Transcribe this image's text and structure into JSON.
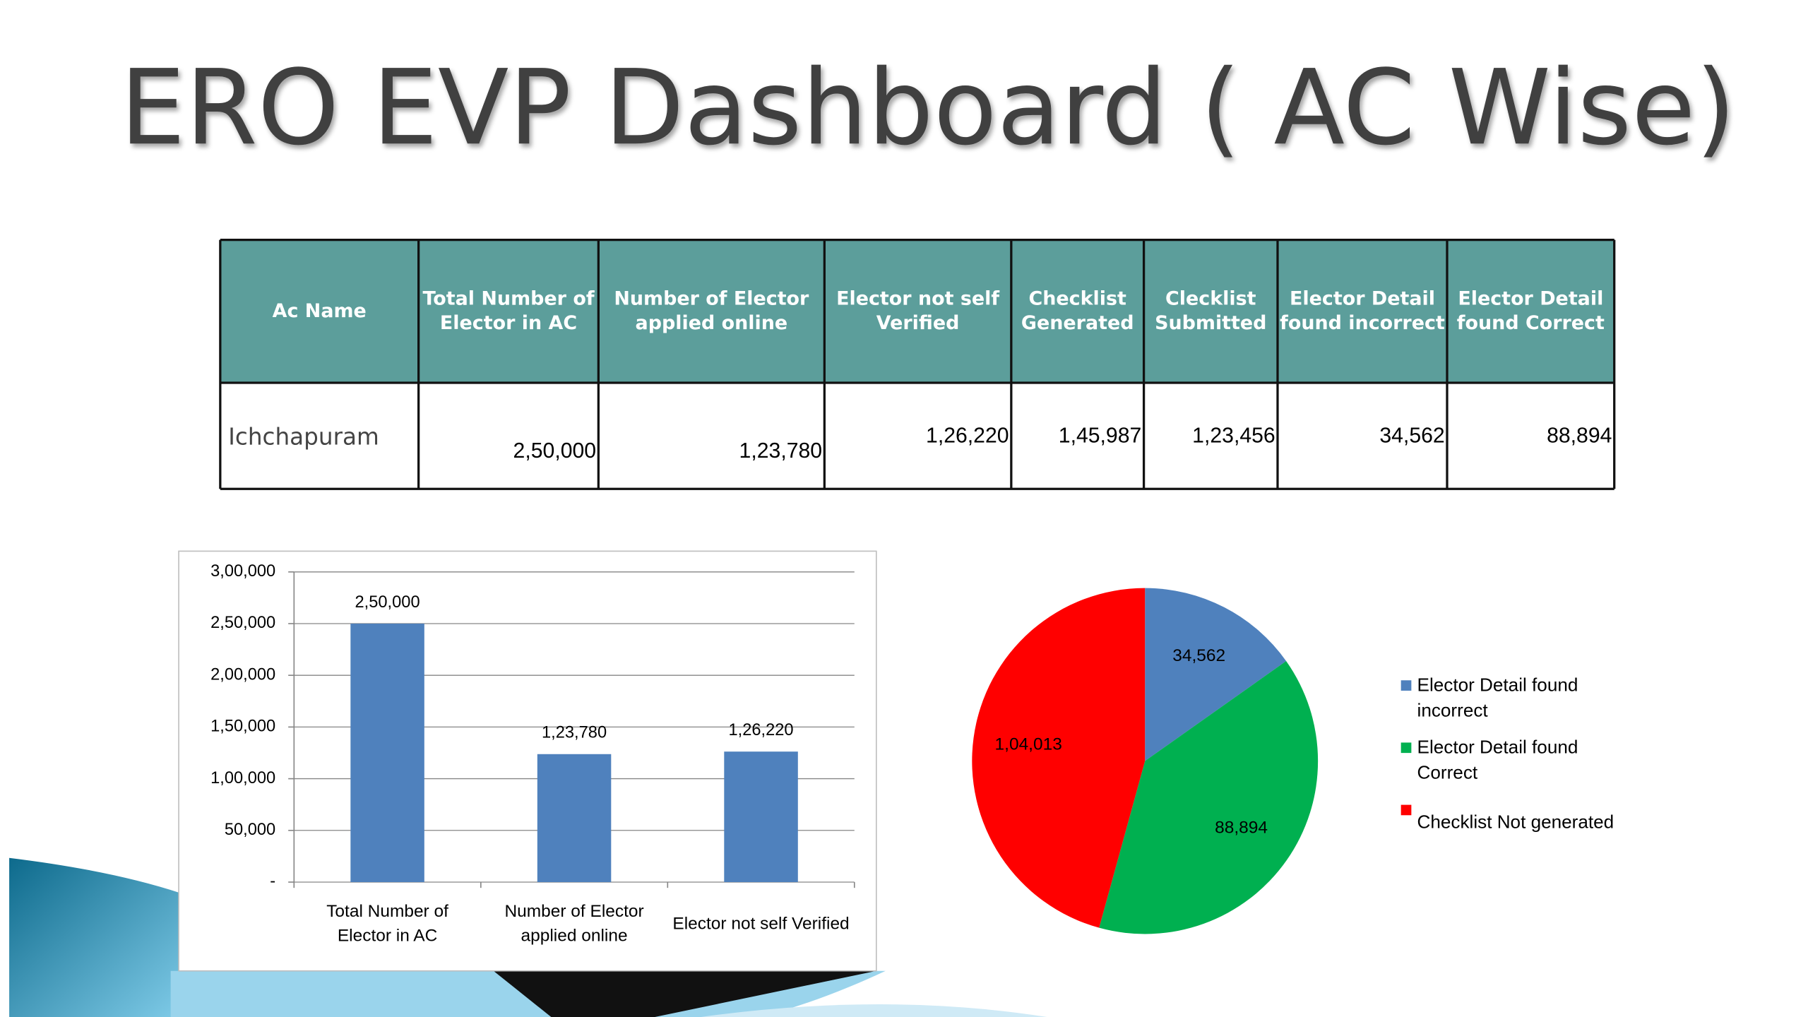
{
  "title": "ERO EVP Dashboard ( AC Wise)",
  "table": {
    "header": [
      "Ac Name",
      "Total Number of Elector in AC",
      "Number of Elector applied online",
      "Elector not self Verified",
      "Checklist Generated",
      "Clecklist Submitted",
      "Elector Detail found  incorrect",
      "Elector Detail found Correct"
    ],
    "rows": [
      [
        "Ichchapuram",
        "2,50,000",
        "1,23,780",
        "1,26,220",
        "1,45,987",
        "1,23,456",
        "34,562",
        "88,894"
      ]
    ]
  },
  "chart_data": [
    {
      "type": "bar",
      "categories": [
        "Total Number of Elector in AC",
        "Number of Elector applied online",
        "Elector not self Verified"
      ],
      "values": [
        250000,
        123780,
        126220
      ],
      "value_labels": [
        "2,50,000",
        "1,23,780",
        "1,26,220"
      ],
      "color": "#4f81bd",
      "ylim": [
        0,
        300000
      ],
      "yticks": [
        {
          "value": 0,
          "label": "-"
        },
        {
          "value": 50000,
          "label": "50,000"
        },
        {
          "value": 100000,
          "label": "1,00,000"
        },
        {
          "value": 150000,
          "label": "1,50,000"
        },
        {
          "value": 200000,
          "label": "2,00,000"
        },
        {
          "value": 250000,
          "label": "2,50,000"
        },
        {
          "value": 300000,
          "label": "3,00,000"
        }
      ],
      "grid": true
    },
    {
      "type": "pie",
      "categories": [
        "Elector Detail found incorrect",
        "Elector Detail found Correct",
        "Checklist Not generated"
      ],
      "values": [
        34562,
        88894,
        104013
      ],
      "value_labels": [
        "34,562",
        "88,894",
        "1,04,013"
      ],
      "colors": [
        "#4f81bd",
        "#00b050",
        "#ff0000"
      ],
      "legend": "right"
    }
  ]
}
